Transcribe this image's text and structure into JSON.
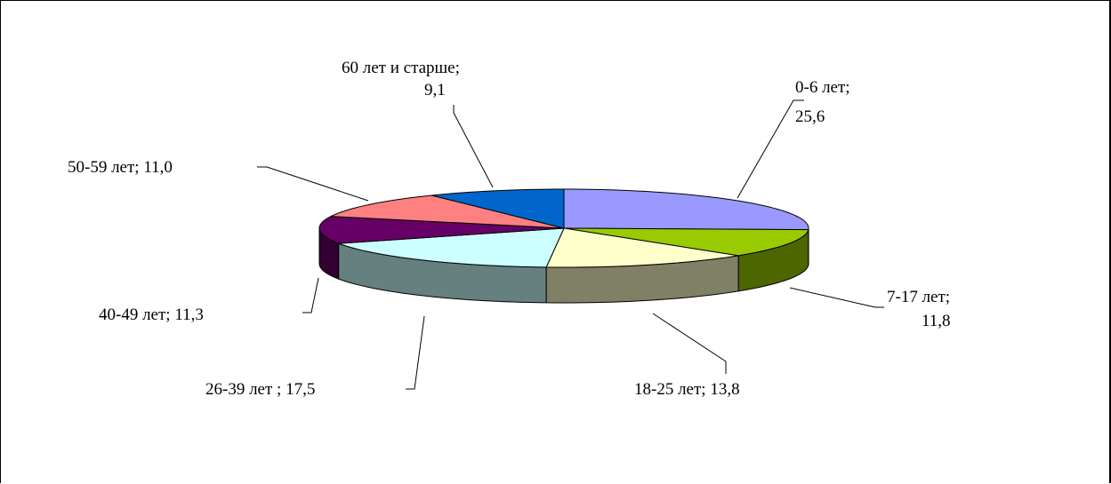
{
  "chart_data": {
    "type": "pie",
    "title": "",
    "categories": [
      "0-6 лет",
      "7-17 лет",
      "18-25 лет",
      "26-39 лет ",
      "40-49 лет",
      "50-59 лет",
      "60 лет и старше"
    ],
    "values": [
      25.6,
      11.8,
      13.8,
      17.5,
      11.3,
      11.0,
      9.1
    ],
    "labels": [
      [
        "0-6 лет;",
        "25,6"
      ],
      [
        "7-17 лет;",
        "11,8"
      ],
      [
        "18-25 лет; 13,8"
      ],
      [
        "26-39 лет ; 17,5"
      ],
      [
        "40-49 лет; 11,3"
      ],
      [
        "50-59 лет; 11,0"
      ],
      [
        "60 лет и старше;",
        "9,1"
      ]
    ],
    "colors": {
      "top": [
        "#9999ff",
        "#99cc00",
        "#ffffcc",
        "#ccffff",
        "#660066",
        "#ff8080",
        "#0066cc"
      ],
      "side": [
        "#4d4d80",
        "#4d6600",
        "#808066",
        "#668080",
        "#330033",
        "#804040",
        "#003366"
      ]
    },
    "style": "3d-pie",
    "legend": "none",
    "data_labels": "outside-with-leader-lines"
  }
}
